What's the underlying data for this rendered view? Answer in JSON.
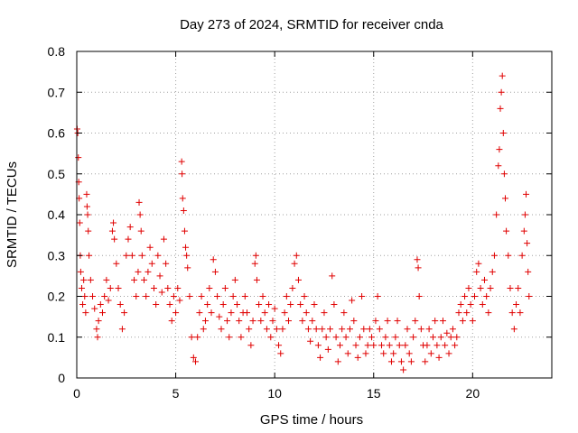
{
  "chart_data": {
    "type": "scatter",
    "title": "Day 273 of 2024, SRMTID for receiver cnda",
    "xlabel": "GPS time / hours",
    "ylabel": "SRMTID / TECUs",
    "xlim": [
      0,
      24
    ],
    "ylim": [
      0,
      0.8
    ],
    "x_ticks": [
      0,
      5,
      10,
      15,
      20
    ],
    "x_tick_labels": [
      "0",
      "5",
      "10",
      "15",
      "20"
    ],
    "y_ticks": [
      0,
      0.1,
      0.2,
      0.3,
      0.4,
      0.5,
      0.6,
      0.7,
      0.8
    ],
    "y_tick_labels": [
      "0",
      "0.1",
      "0.2",
      "0.3",
      "0.4",
      "0.5",
      "0.6",
      "0.7",
      "0.8"
    ],
    "grid": true,
    "marker": "+",
    "color": "#e00000",
    "series": [
      {
        "name": "SRMTID",
        "points": [
          [
            0.02,
            0.61
          ],
          [
            0.05,
            0.6
          ],
          [
            0.08,
            0.54
          ],
          [
            0.1,
            0.48
          ],
          [
            0.12,
            0.44
          ],
          [
            0.15,
            0.38
          ],
          [
            0.18,
            0.3
          ],
          [
            0.2,
            0.26
          ],
          [
            0.25,
            0.22
          ],
          [
            0.3,
            0.18
          ],
          [
            0.35,
            0.24
          ],
          [
            0.4,
            0.2
          ],
          [
            0.45,
            0.16
          ],
          [
            0.5,
            0.45
          ],
          [
            0.52,
            0.42
          ],
          [
            0.55,
            0.4
          ],
          [
            0.58,
            0.36
          ],
          [
            0.62,
            0.3
          ],
          [
            0.7,
            0.24
          ],
          [
            0.8,
            0.2
          ],
          [
            0.9,
            0.17
          ],
          [
            1.0,
            0.12
          ],
          [
            1.05,
            0.1
          ],
          [
            1.1,
            0.14
          ],
          [
            1.2,
            0.18
          ],
          [
            1.3,
            0.16
          ],
          [
            1.4,
            0.2
          ],
          [
            1.5,
            0.24
          ],
          [
            1.6,
            0.19
          ],
          [
            1.7,
            0.22
          ],
          [
            1.8,
            0.36
          ],
          [
            1.85,
            0.38
          ],
          [
            1.9,
            0.34
          ],
          [
            2.0,
            0.28
          ],
          [
            2.1,
            0.22
          ],
          [
            2.2,
            0.18
          ],
          [
            2.3,
            0.12
          ],
          [
            2.4,
            0.16
          ],
          [
            2.5,
            0.3
          ],
          [
            2.6,
            0.34
          ],
          [
            2.7,
            0.37
          ],
          [
            2.8,
            0.3
          ],
          [
            2.9,
            0.24
          ],
          [
            3.0,
            0.2
          ],
          [
            3.1,
            0.26
          ],
          [
            3.15,
            0.43
          ],
          [
            3.2,
            0.4
          ],
          [
            3.25,
            0.36
          ],
          [
            3.3,
            0.3
          ],
          [
            3.4,
            0.24
          ],
          [
            3.5,
            0.2
          ],
          [
            3.6,
            0.26
          ],
          [
            3.7,
            0.32
          ],
          [
            3.8,
            0.28
          ],
          [
            3.9,
            0.22
          ],
          [
            4.0,
            0.18
          ],
          [
            4.1,
            0.3
          ],
          [
            4.2,
            0.25
          ],
          [
            4.3,
            0.21
          ],
          [
            4.4,
            0.34
          ],
          [
            4.5,
            0.28
          ],
          [
            4.6,
            0.22
          ],
          [
            4.7,
            0.18
          ],
          [
            4.8,
            0.14
          ],
          [
            4.9,
            0.2
          ],
          [
            5.0,
            0.16
          ],
          [
            5.1,
            0.22
          ],
          [
            5.2,
            0.19
          ],
          [
            5.3,
            0.53
          ],
          [
            5.32,
            0.5
          ],
          [
            5.35,
            0.44
          ],
          [
            5.4,
            0.41
          ],
          [
            5.45,
            0.36
          ],
          [
            5.5,
            0.32
          ],
          [
            5.55,
            0.3
          ],
          [
            5.6,
            0.27
          ],
          [
            5.7,
            0.2
          ],
          [
            5.8,
            0.1
          ],
          [
            5.9,
            0.05
          ],
          [
            6.0,
            0.04
          ],
          [
            6.1,
            0.1
          ],
          [
            6.2,
            0.16
          ],
          [
            6.3,
            0.2
          ],
          [
            6.4,
            0.12
          ],
          [
            6.5,
            0.14
          ],
          [
            6.6,
            0.18
          ],
          [
            6.7,
            0.22
          ],
          [
            6.8,
            0.16
          ],
          [
            6.9,
            0.29
          ],
          [
            7.0,
            0.26
          ],
          [
            7.1,
            0.2
          ],
          [
            7.2,
            0.15
          ],
          [
            7.3,
            0.12
          ],
          [
            7.4,
            0.18
          ],
          [
            7.5,
            0.22
          ],
          [
            7.6,
            0.14
          ],
          [
            7.7,
            0.1
          ],
          [
            7.8,
            0.16
          ],
          [
            7.9,
            0.2
          ],
          [
            8.0,
            0.24
          ],
          [
            8.1,
            0.18
          ],
          [
            8.2,
            0.14
          ],
          [
            8.3,
            0.1
          ],
          [
            8.4,
            0.16
          ],
          [
            8.5,
            0.2
          ],
          [
            8.6,
            0.16
          ],
          [
            8.7,
            0.12
          ],
          [
            8.8,
            0.08
          ],
          [
            8.9,
            0.14
          ],
          [
            9.0,
            0.28
          ],
          [
            9.05,
            0.3
          ],
          [
            9.1,
            0.24
          ],
          [
            9.2,
            0.18
          ],
          [
            9.3,
            0.14
          ],
          [
            9.4,
            0.2
          ],
          [
            9.5,
            0.16
          ],
          [
            9.6,
            0.12
          ],
          [
            9.7,
            0.18
          ],
          [
            9.8,
            0.1
          ],
          [
            9.9,
            0.14
          ],
          [
            10.0,
            0.17
          ],
          [
            10.1,
            0.12
          ],
          [
            10.2,
            0.08
          ],
          [
            10.3,
            0.06
          ],
          [
            10.4,
            0.12
          ],
          [
            10.5,
            0.16
          ],
          [
            10.6,
            0.2
          ],
          [
            10.7,
            0.14
          ],
          [
            10.8,
            0.18
          ],
          [
            10.9,
            0.22
          ],
          [
            11.0,
            0.28
          ],
          [
            11.1,
            0.3
          ],
          [
            11.2,
            0.24
          ],
          [
            11.3,
            0.18
          ],
          [
            11.4,
            0.14
          ],
          [
            11.5,
            0.2
          ],
          [
            11.6,
            0.16
          ],
          [
            11.7,
            0.12
          ],
          [
            11.8,
            0.09
          ],
          [
            11.9,
            0.14
          ],
          [
            12.0,
            0.18
          ],
          [
            12.1,
            0.12
          ],
          [
            12.2,
            0.08
          ],
          [
            12.3,
            0.05
          ],
          [
            12.4,
            0.12
          ],
          [
            12.5,
            0.16
          ],
          [
            12.6,
            0.1
          ],
          [
            12.7,
            0.07
          ],
          [
            12.8,
            0.12
          ],
          [
            12.9,
            0.25
          ],
          [
            13.0,
            0.18
          ],
          [
            13.1,
            0.1
          ],
          [
            13.2,
            0.04
          ],
          [
            13.3,
            0.08
          ],
          [
            13.4,
            0.12
          ],
          [
            13.5,
            0.16
          ],
          [
            13.6,
            0.1
          ],
          [
            13.7,
            0.06
          ],
          [
            13.8,
            0.12
          ],
          [
            13.9,
            0.19
          ],
          [
            14.0,
            0.14
          ],
          [
            14.1,
            0.08
          ],
          [
            14.2,
            0.05
          ],
          [
            14.3,
            0.1
          ],
          [
            14.4,
            0.2
          ],
          [
            14.5,
            0.12
          ],
          [
            14.6,
            0.06
          ],
          [
            14.7,
            0.08
          ],
          [
            14.8,
            0.12
          ],
          [
            14.9,
            0.1
          ],
          [
            15.0,
            0.08
          ],
          [
            15.1,
            0.14
          ],
          [
            15.2,
            0.2
          ],
          [
            15.3,
            0.12
          ],
          [
            15.4,
            0.08
          ],
          [
            15.5,
            0.06
          ],
          [
            15.6,
            0.1
          ],
          [
            15.7,
            0.14
          ],
          [
            15.8,
            0.08
          ],
          [
            15.9,
            0.04
          ],
          [
            16.0,
            0.06
          ],
          [
            16.1,
            0.1
          ],
          [
            16.2,
            0.14
          ],
          [
            16.3,
            0.08
          ],
          [
            16.4,
            0.04
          ],
          [
            16.5,
            0.02
          ],
          [
            16.6,
            0.08
          ],
          [
            16.7,
            0.12
          ],
          [
            16.8,
            0.06
          ],
          [
            16.9,
            0.04
          ],
          [
            17.0,
            0.1
          ],
          [
            17.1,
            0.14
          ],
          [
            17.2,
            0.29
          ],
          [
            17.25,
            0.27
          ],
          [
            17.3,
            0.2
          ],
          [
            17.4,
            0.12
          ],
          [
            17.5,
            0.08
          ],
          [
            17.6,
            0.04
          ],
          [
            17.7,
            0.08
          ],
          [
            17.8,
            0.12
          ],
          [
            17.9,
            0.06
          ],
          [
            18.0,
            0.1
          ],
          [
            18.1,
            0.14
          ],
          [
            18.2,
            0.08
          ],
          [
            18.3,
            0.05
          ],
          [
            18.4,
            0.1
          ],
          [
            18.5,
            0.14
          ],
          [
            18.6,
            0.08
          ],
          [
            18.7,
            0.11
          ],
          [
            18.8,
            0.06
          ],
          [
            18.9,
            0.1
          ],
          [
            19.0,
            0.12
          ],
          [
            19.1,
            0.08
          ],
          [
            19.2,
            0.1
          ],
          [
            19.3,
            0.16
          ],
          [
            19.4,
            0.18
          ],
          [
            19.5,
            0.14
          ],
          [
            19.6,
            0.2
          ],
          [
            19.7,
            0.16
          ],
          [
            19.8,
            0.22
          ],
          [
            19.9,
            0.18
          ],
          [
            20.0,
            0.14
          ],
          [
            20.1,
            0.2
          ],
          [
            20.2,
            0.26
          ],
          [
            20.3,
            0.28
          ],
          [
            20.4,
            0.22
          ],
          [
            20.5,
            0.18
          ],
          [
            20.6,
            0.24
          ],
          [
            20.7,
            0.2
          ],
          [
            20.8,
            0.16
          ],
          [
            20.9,
            0.22
          ],
          [
            21.0,
            0.26
          ],
          [
            21.1,
            0.3
          ],
          [
            21.2,
            0.4
          ],
          [
            21.3,
            0.52
          ],
          [
            21.35,
            0.56
          ],
          [
            21.4,
            0.66
          ],
          [
            21.45,
            0.7
          ],
          [
            21.5,
            0.74
          ],
          [
            21.55,
            0.6
          ],
          [
            21.6,
            0.5
          ],
          [
            21.65,
            0.44
          ],
          [
            21.7,
            0.36
          ],
          [
            21.8,
            0.3
          ],
          [
            21.9,
            0.22
          ],
          [
            22.0,
            0.16
          ],
          [
            22.1,
            0.12
          ],
          [
            22.2,
            0.18
          ],
          [
            22.3,
            0.22
          ],
          [
            22.4,
            0.16
          ],
          [
            22.5,
            0.3
          ],
          [
            22.6,
            0.36
          ],
          [
            22.65,
            0.4
          ],
          [
            22.7,
            0.45
          ],
          [
            22.75,
            0.33
          ],
          [
            22.8,
            0.26
          ],
          [
            22.85,
            0.2
          ]
        ]
      }
    ]
  }
}
